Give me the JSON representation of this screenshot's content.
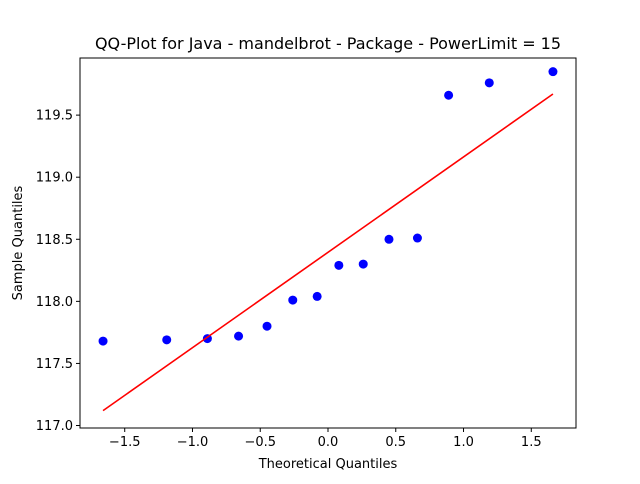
{
  "chart_data": {
    "type": "scatter",
    "title": "QQ-Plot for Java - mandelbrot - Package - PowerLimit = 15",
    "xlabel": "Theoretical Quantiles",
    "ylabel": "Sample Quantiles",
    "xlim": [
      -1.83,
      1.83
    ],
    "ylim": [
      116.98,
      119.96
    ],
    "x_ticks": [
      -1.5,
      -1.0,
      -0.5,
      0.0,
      0.5,
      1.0,
      1.5
    ],
    "x_tick_labels": [
      "−1.5",
      "−1.0",
      "−0.5",
      "0.0",
      "0.5",
      "1.0",
      "1.5"
    ],
    "y_ticks": [
      117.0,
      117.5,
      118.0,
      118.5,
      119.0,
      119.5
    ],
    "y_tick_labels": [
      "117.0",
      "117.5",
      "118.0",
      "118.5",
      "119.0",
      "119.5"
    ],
    "grid": false,
    "series": [
      {
        "kind": "points",
        "color": "#0000ff",
        "x": [
          -1.66,
          -1.19,
          -0.89,
          -0.66,
          -0.45,
          -0.26,
          -0.08,
          0.08,
          0.26,
          0.45,
          0.66,
          0.89,
          1.19,
          1.66
        ],
        "y": [
          117.68,
          117.69,
          117.7,
          117.72,
          117.8,
          118.01,
          118.04,
          118.29,
          118.3,
          118.5,
          118.51,
          119.66,
          119.76,
          119.85
        ]
      },
      {
        "kind": "line",
        "color": "#ff0000",
        "x": [
          -1.66,
          1.66
        ],
        "y": [
          117.12,
          119.67
        ]
      }
    ]
  }
}
